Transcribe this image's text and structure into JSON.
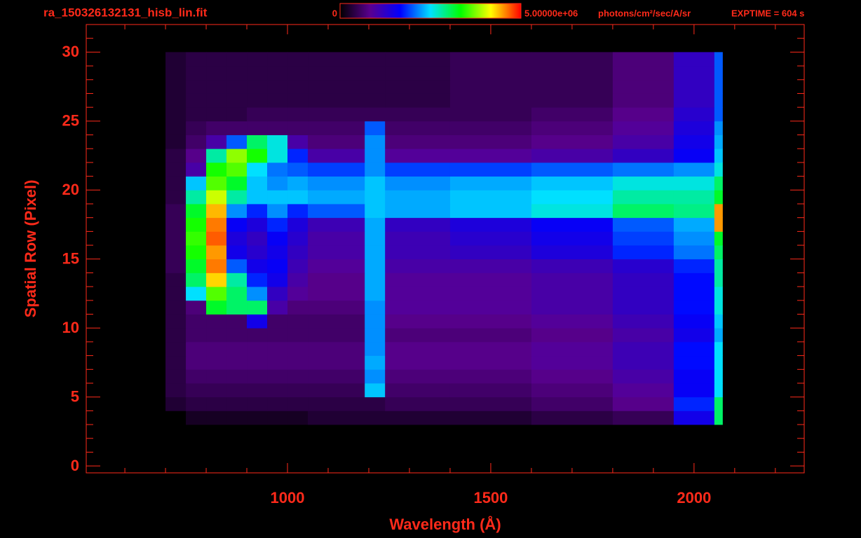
{
  "chart_data": {
    "type": "heatmap",
    "title": "ra_150326132131_hisb_lin.fit",
    "annotation": "EXPTIME = 604 s",
    "xlabel": "Wavelength (Å)",
    "ylabel": "Spatial Row (Pixel)",
    "colorbar_unit": "photons/cm²/sec/A/sr",
    "colormap": [
      "#000000",
      "#5a0090",
      "#0000ff",
      "#00e0ff",
      "#00ff00",
      "#ffff00",
      "#ff0000"
    ],
    "zlim": [
      0,
      5000000
    ],
    "zticks": [
      0,
      {
        "value": 5000000,
        "label": "5.00000e+06"
      }
    ],
    "xlim": [
      505,
      2271
    ],
    "ylim": [
      -0.5,
      32
    ],
    "xticks": [
      1000,
      1500,
      2000
    ],
    "yticks": [
      0,
      5,
      10,
      15,
      20,
      25,
      30
    ],
    "xminorticks": [
      600,
      700,
      800,
      900,
      1100,
      1200,
      1300,
      1400,
      1600,
      1700,
      1800,
      1900,
      2100,
      2200
    ],
    "yminorticks": [
      1,
      2,
      3,
      4,
      6,
      7,
      8,
      9,
      11,
      12,
      13,
      14,
      16,
      17,
      18,
      19,
      21,
      22,
      23,
      24,
      26,
      27,
      28,
      29,
      31
    ],
    "x_edges": [
      700,
      750,
      800,
      850,
      900,
      950,
      1000,
      1050,
      1190,
      1240,
      1400,
      1600,
      1800,
      1950,
      2050,
      2070
    ],
    "y_edges": [
      3,
      4,
      5,
      6,
      7,
      8,
      9,
      10,
      11,
      12,
      13,
      14,
      15,
      16,
      17,
      18,
      19,
      20,
      21,
      22,
      23,
      24,
      25,
      26,
      27,
      28,
      29,
      30
    ],
    "values": [
      [
        0,
        200000.0,
        200000.0,
        200000.0,
        200000.0,
        200000.0,
        200000.0,
        300000.0,
        300000.0,
        300000.0,
        300000.0,
        400000.0,
        500000.0,
        1500000.0,
        3000000.0
      ],
      [
        300000.0,
        400000.0,
        400000.0,
        400000.0,
        400000.0,
        400000.0,
        400000.0,
        400000.0,
        400000.0,
        500000.0,
        500000.0,
        600000.0,
        800000.0,
        1800000.0,
        3000000.0
      ],
      [
        400000.0,
        500000.0,
        500000.0,
        500000.0,
        500000.0,
        500000.0,
        500000.0,
        500000.0,
        2400000.0,
        600000.0,
        600000.0,
        700000.0,
        900000.0,
        1600000.0,
        2500000.0
      ],
      [
        400000.0,
        600000.0,
        600000.0,
        600000.0,
        600000.0,
        600000.0,
        600000.0,
        600000.0,
        2200000.0,
        700000.0,
        700000.0,
        800000.0,
        1000000.0,
        1600000.0,
        2500000.0
      ],
      [
        400000.0,
        700000.0,
        700000.0,
        700000.0,
        700000.0,
        700000.0,
        700000.0,
        700000.0,
        2300000.0,
        800000.0,
        800000.0,
        900000.0,
        1100000.0,
        1700000.0,
        2500000.0
      ],
      [
        400000.0,
        700000.0,
        700000.0,
        700000.0,
        700000.0,
        700000.0,
        700000.0,
        700000.0,
        2200000.0,
        800000.0,
        800000.0,
        900000.0,
        1100000.0,
        1700000.0,
        2500000.0
      ],
      [
        400000.0,
        600000.0,
        600000.0,
        600000.0,
        600000.0,
        600000.0,
        600000.0,
        600000.0,
        2200000.0,
        700000.0,
        700000.0,
        800000.0,
        1000000.0,
        1500000.0,
        2300000.0
      ],
      [
        400000.0,
        600000.0,
        600000.0,
        600000.0,
        1500000.0,
        600000.0,
        600000.0,
        600000.0,
        2200000.0,
        800000.0,
        800000.0,
        900000.0,
        1100000.0,
        1600000.0,
        2400000.0
      ],
      [
        400000.0,
        700000.0,
        3200000.0,
        3000000.0,
        3000000.0,
        1000000.0,
        700000.0,
        700000.0,
        2200000.0,
        900000.0,
        900000.0,
        1000000.0,
        1200000.0,
        1700000.0,
        2600000.0
      ],
      [
        400000.0,
        2500000.0,
        3600000.0,
        3000000.0,
        2200000.0,
        1200000.0,
        900000.0,
        800000.0,
        2300000.0,
        900000.0,
        900000.0,
        1000000.0,
        1200000.0,
        1700000.0,
        2600000.0
      ],
      [
        400000.0,
        3000000.0,
        4300000.0,
        2800000.0,
        1800000.0,
        1500000.0,
        1000000.0,
        800000.0,
        2300000.0,
        900000.0,
        900000.0,
        1000000.0,
        1200000.0,
        1700000.0,
        2800000.0
      ],
      [
        500000.0,
        3200000.0,
        4600000.0,
        2000000.0,
        1500000.0,
        1600000.0,
        1100000.0,
        900000.0,
        2300000.0,
        1000000.0,
        1000000.0,
        1100000.0,
        1300000.0,
        1800000.0,
        2800000.0
      ],
      [
        500000.0,
        3400000.0,
        4500000.0,
        1500000.0,
        1300000.0,
        1500000.0,
        1200000.0,
        1000000.0,
        2300000.0,
        1100000.0,
        1200000.0,
        1400000.0,
        1800000.0,
        2100000.0,
        3000000.0
      ],
      [
        500000.0,
        3500000.0,
        4700000.0,
        1400000.0,
        1200000.0,
        1600000.0,
        1300000.0,
        1000000.0,
        2300000.0,
        1100000.0,
        1300000.0,
        1500000.0,
        1900000.0,
        2200000.0,
        3200000.0
      ],
      [
        500000.0,
        3400000.0,
        4600000.0,
        1600000.0,
        1400000.0,
        1800000.0,
        1400000.0,
        1100000.0,
        2300000.0,
        1200000.0,
        1400000.0,
        1600000.0,
        2000000.0,
        2300000.0,
        4500000.0
      ],
      [
        500000.0,
        3200000.0,
        4400000.0,
        2200000.0,
        1800000.0,
        2200000.0,
        1800000.0,
        2000000.0,
        2400000.0,
        2300000.0,
        2400000.0,
        2600000.0,
        3000000.0,
        2900000.0,
        4500000.0
      ],
      [
        400000.0,
        2800000.0,
        4000000.0,
        2800000.0,
        2400000.0,
        2400000.0,
        2400000.0,
        2300000.0,
        2400000.0,
        2300000.0,
        2400000.0,
        2500000.0,
        2800000.0,
        2800000.0,
        3200000.0
      ],
      [
        400000.0,
        2400000.0,
        3600000.0,
        3200000.0,
        2400000.0,
        2200000.0,
        2300000.0,
        2200000.0,
        2400000.0,
        2200000.0,
        2300000.0,
        2400000.0,
        2600000.0,
        2600000.0,
        3000000.0
      ],
      [
        400000.0,
        1000000.0,
        3400000.0,
        3600000.0,
        2500000.0,
        2100000.0,
        2000000.0,
        1900000.0,
        2200000.0,
        1900000.0,
        1900000.0,
        2000000.0,
        2100000.0,
        2200000.0,
        2600000.0
      ],
      [
        400000.0,
        800000.0,
        2800000.0,
        3800000.0,
        3400000.0,
        2600000.0,
        1800000.0,
        1000000.0,
        2200000.0,
        900000.0,
        900000.0,
        1000000.0,
        1200000.0,
        1600000.0,
        2400000.0
      ],
      [
        300000.0,
        600000.0,
        1000000.0,
        2000000.0,
        3000000.0,
        2600000.0,
        1000000.0,
        700000.0,
        2200000.0,
        700000.0,
        700000.0,
        800000.0,
        1000000.0,
        1500000.0,
        2300000.0
      ],
      [
        300000.0,
        500000.0,
        600000.0,
        600000.0,
        600000.0,
        600000.0,
        600000.0,
        600000.0,
        2000000.0,
        600000.0,
        600000.0,
        700000.0,
        900000.0,
        1400000.0,
        2200000.0
      ],
      [
        300000.0,
        400000.0,
        400000.0,
        400000.0,
        500000.0,
        500000.0,
        500000.0,
        500000.0,
        500000.0,
        500000.0,
        500000.0,
        600000.0,
        800000.0,
        1300000.0,
        2000000.0
      ],
      [
        300000.0,
        400000.0,
        400000.0,
        400000.0,
        400000.0,
        400000.0,
        400000.0,
        400000.0,
        400000.0,
        400000.0,
        500000.0,
        500000.0,
        700000.0,
        1200000.0,
        2000000.0
      ],
      [
        300000.0,
        400000.0,
        400000.0,
        400000.0,
        400000.0,
        400000.0,
        400000.0,
        400000.0,
        400000.0,
        400000.0,
        500000.0,
        500000.0,
        700000.0,
        1200000.0,
        2000000.0
      ],
      [
        300000.0,
        400000.0,
        400000.0,
        400000.0,
        400000.0,
        400000.0,
        400000.0,
        400000.0,
        400000.0,
        400000.0,
        500000.0,
        500000.0,
        700000.0,
        1200000.0,
        2000000.0
      ],
      [
        300000.0,
        400000.0,
        400000.0,
        400000.0,
        400000.0,
        400000.0,
        400000.0,
        400000.0,
        400000.0,
        400000.0,
        500000.0,
        500000.0,
        700000.0,
        1200000.0,
        2000000.0
      ]
    ],
    "axis_color": "#ff2a1a"
  }
}
